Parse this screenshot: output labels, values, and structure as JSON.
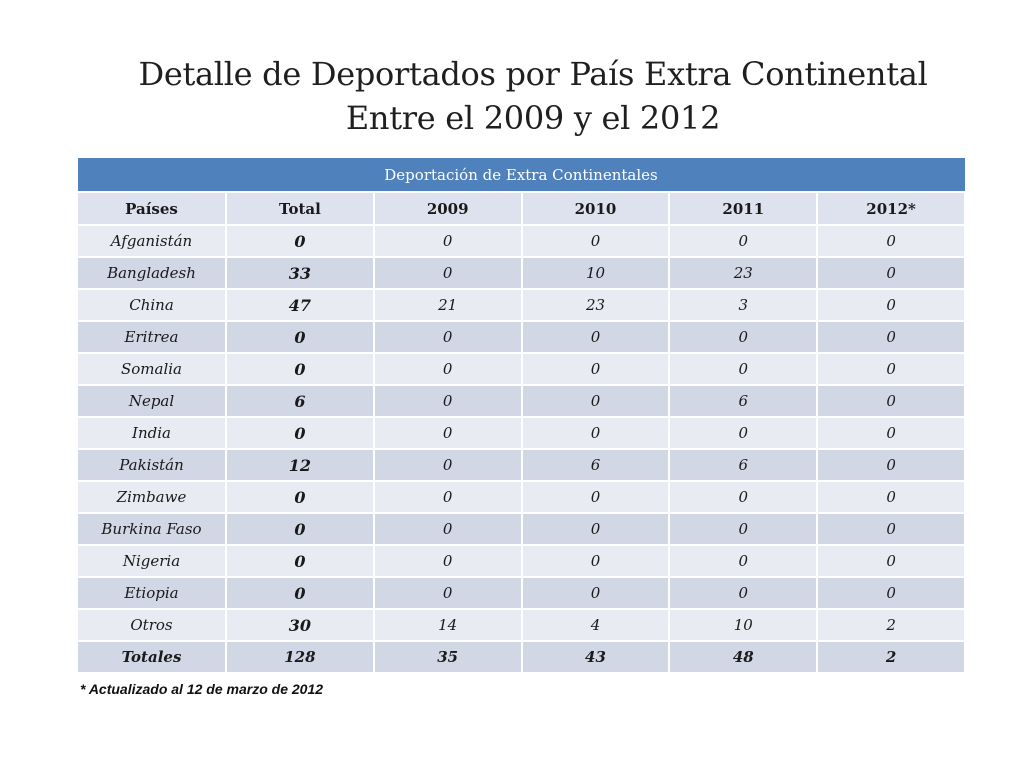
{
  "title": {
    "line1": "Detalle de Deportados por País Extra Continental",
    "line2": "Entre el 2009 y el 2012"
  },
  "table": {
    "caption": "Deportación de Extra Continentales",
    "headers": [
      "Países",
      "Total",
      "2009",
      "2010",
      "2011",
      "2012*"
    ],
    "rows": [
      [
        "Afganistán",
        "0",
        "0",
        "0",
        "0",
        "0"
      ],
      [
        "Bangladesh",
        "33",
        "0",
        "10",
        "23",
        "0"
      ],
      [
        "China",
        "47",
        "21",
        "23",
        "3",
        "0"
      ],
      [
        "Eritrea",
        "0",
        "0",
        "0",
        "0",
        "0"
      ],
      [
        "Somalia",
        "0",
        "0",
        "0",
        "0",
        "0"
      ],
      [
        "Nepal",
        "6",
        "0",
        "0",
        "6",
        "0"
      ],
      [
        "India",
        "0",
        "0",
        "0",
        "0",
        "0"
      ],
      [
        "Pakistán",
        "12",
        "0",
        "6",
        "6",
        "0"
      ],
      [
        "Zimbawe",
        "0",
        "0",
        "0",
        "0",
        "0"
      ],
      [
        "Burkina Faso",
        "0",
        "0",
        "0",
        "0",
        "0"
      ],
      [
        "Nigeria",
        "0",
        "0",
        "0",
        "0",
        "0"
      ],
      [
        "Etiopia",
        "0",
        "0",
        "0",
        "0",
        "0"
      ],
      [
        "Otros",
        "30",
        "14",
        "4",
        "10",
        "2"
      ]
    ],
    "totals": [
      "Totales",
      "128",
      "35",
      "43",
      "48",
      "2"
    ]
  },
  "footnote": "*  Actualizado al 12 de marzo de 2012",
  "colors": {
    "caption_bg": "#4f81bd",
    "header_bg": "#dde2ee",
    "row_light": "#e8ebf2",
    "row_dark": "#d2d7e6"
  }
}
